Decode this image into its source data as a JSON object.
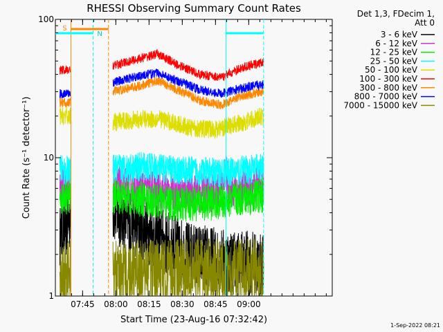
{
  "chart_data": {
    "type": "line",
    "title": "RHESSI Observing Summary Count Rates",
    "xlabel": "Start Time (23-Aug-16 07:32:42)",
    "ylabel": "Count Rate (s⁻¹ detector⁻¹)",
    "y_scale": "log",
    "ylim": [
      1,
      100
    ],
    "y_ticks": [
      {
        "v": 1,
        "label": "1"
      },
      {
        "v": 10,
        "label": "10"
      },
      {
        "v": 100,
        "label": "100"
      }
    ],
    "x_range_min": [
      0,
      125
    ],
    "x_ticks": [
      {
        "t": 12.3,
        "label": "07:45"
      },
      {
        "t": 27.3,
        "label": "08:00"
      },
      {
        "t": 42.3,
        "label": "08:15"
      },
      {
        "t": 57.3,
        "label": "08:30"
      },
      {
        "t": 72.3,
        "label": "08:45"
      },
      {
        "t": 87.3,
        "label": "09:00"
      }
    ],
    "legend_header": [
      "Det 1,3, FDecim 1,",
      "Att 0"
    ],
    "footer_date": "1-Sep-2022 08:21",
    "flag_labels": {
      "saa": "S",
      "night": "N"
    },
    "flags": {
      "saa": [
        [
          7,
          24
        ]
      ],
      "night": [
        [
          0,
          17
        ],
        [
          77,
          94
        ]
      ]
    },
    "markers": {
      "saa_lines": [
        7,
        24
      ],
      "night_dashed": [
        17,
        94
      ],
      "night_solid": [
        77
      ],
      "data_gap": [
        2,
        26
      ]
    },
    "series": [
      {
        "name": "3 - 6 keV",
        "color": "#000000",
        "noise": 1.0,
        "profile": [
          [
            2,
            2.6
          ],
          [
            7,
            3.8
          ],
          [
            26,
            4.2
          ],
          [
            31,
            3.6
          ],
          [
            40,
            3.0
          ],
          [
            50,
            2.4
          ],
          [
            60,
            2.0
          ],
          [
            75,
            1.8
          ],
          [
            90,
            1.7
          ],
          [
            94,
            1.6
          ]
        ]
      },
      {
        "name": "6 - 12 keV",
        "color": "#cc33cc",
        "noise": 0.6,
        "profile": [
          [
            2,
            6.5
          ],
          [
            7,
            6.2
          ],
          [
            26,
            6.3
          ],
          [
            40,
            6.0
          ],
          [
            55,
            5.6
          ],
          [
            70,
            5.6
          ],
          [
            76,
            6.2
          ],
          [
            77,
            8.5
          ],
          [
            78,
            6.0
          ],
          [
            94,
            6.2
          ]
        ]
      },
      {
        "name": "12 - 25 keV",
        "color": "#00ee00",
        "noise": 0.55,
        "profile": [
          [
            2,
            5.3
          ],
          [
            7,
            5.2
          ],
          [
            26,
            5.3
          ],
          [
            40,
            5.0
          ],
          [
            55,
            4.6
          ],
          [
            75,
            4.8
          ],
          [
            94,
            5.4
          ]
        ]
      },
      {
        "name": "25 - 50 keV",
        "color": "#00ffff",
        "noise": 0.45,
        "profile": [
          [
            2,
            8.2
          ],
          [
            7,
            8.0
          ],
          [
            26,
            8.3
          ],
          [
            40,
            8.6
          ],
          [
            55,
            8.1
          ],
          [
            75,
            7.8
          ],
          [
            94,
            8.4
          ]
        ]
      },
      {
        "name": "50 - 100 keV",
        "color": "#dddd00",
        "noise": 0.28,
        "profile": [
          [
            2,
            20
          ],
          [
            7,
            20
          ],
          [
            26,
            18
          ],
          [
            38,
            19
          ],
          [
            48,
            19
          ],
          [
            60,
            16.5
          ],
          [
            72,
            16
          ],
          [
            85,
            18
          ],
          [
            94,
            20
          ]
        ]
      },
      {
        "name": "100 - 300 keV",
        "color": "#ff0000",
        "noise": 0.14,
        "profile": [
          [
            2,
            43
          ],
          [
            7,
            43
          ],
          [
            26,
            46
          ],
          [
            38,
            52
          ],
          [
            46,
            56
          ],
          [
            55,
            47
          ],
          [
            65,
            40
          ],
          [
            75,
            38
          ],
          [
            85,
            45
          ],
          [
            94,
            49
          ]
        ]
      },
      {
        "name": "300 - 800 keV",
        "color": "#ff8800",
        "noise": 0.14,
        "profile": [
          [
            2,
            25
          ],
          [
            7,
            25
          ],
          [
            26,
            30
          ],
          [
            38,
            33
          ],
          [
            46,
            36
          ],
          [
            55,
            31
          ],
          [
            65,
            26
          ],
          [
            75,
            24
          ],
          [
            85,
            28
          ],
          [
            94,
            30
          ]
        ]
      },
      {
        "name": "800 - 7000 keV",
        "color": "#0000ff",
        "noise": 0.14,
        "profile": [
          [
            2,
            29
          ],
          [
            7,
            29
          ],
          [
            26,
            35
          ],
          [
            38,
            39
          ],
          [
            46,
            41
          ],
          [
            55,
            36
          ],
          [
            65,
            31
          ],
          [
            75,
            29
          ],
          [
            85,
            32
          ],
          [
            94,
            34
          ]
        ]
      },
      {
        "name": "7000 - 15000 keV",
        "color": "#888800",
        "noise": 1.0,
        "profile": [
          [
            2,
            1.5
          ],
          [
            7,
            1.5
          ],
          [
            26,
            1.45
          ],
          [
            60,
            1.5
          ],
          [
            94,
            1.5
          ]
        ]
      }
    ]
  }
}
